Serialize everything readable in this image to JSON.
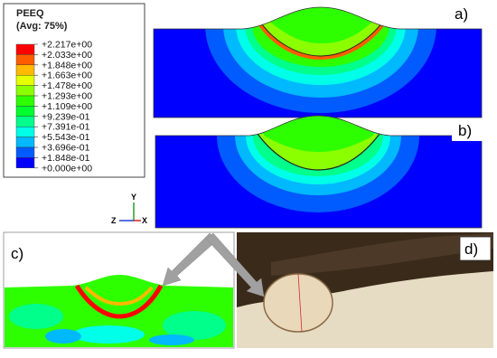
{
  "legend": {
    "title": "PEEQ",
    "subtitle": "(Avg: 75%)",
    "labels": [
      "+2.217e+00",
      "+2.033e+00",
      "+1.848e+00",
      "+1.663e+00",
      "+1.478e+00",
      "+1.293e+00",
      "+1.109e+00",
      "+9.239e-01",
      "+7.391e-01",
      "+5.543e-01",
      "+3.696e-01",
      "+1.848e-01",
      "+0.000e+00"
    ],
    "colors": [
      "#ff0000",
      "#ff5c00",
      "#ffb900",
      "#e5ff00",
      "#8bff00",
      "#2eff00",
      "#00ff2e",
      "#00ff8b",
      "#00ffe8",
      "#00b9ff",
      "#005cff",
      "#0000ff"
    ]
  },
  "triad": {
    "y": "Y",
    "z": "Z",
    "x": "X"
  },
  "panels": {
    "a": "a)",
    "b": "b)",
    "c": "c)",
    "d": "d)"
  }
}
